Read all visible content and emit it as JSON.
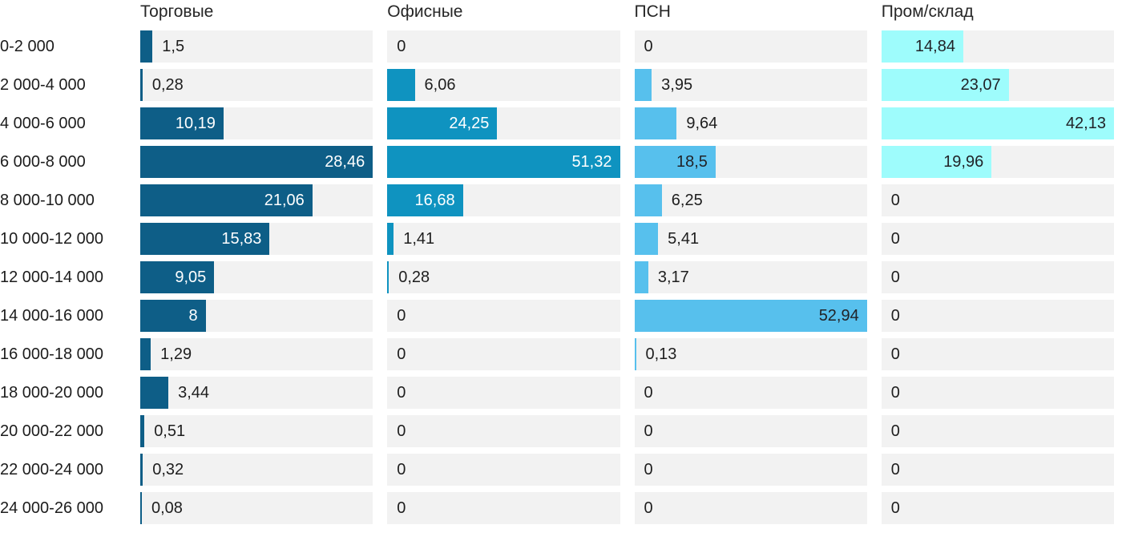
{
  "chart_data": {
    "type": "bar",
    "orientation": "horizontal",
    "title": "",
    "xlabel": "",
    "ylabel": "",
    "scaling": "each column scaled to its own max value",
    "track_color": "#f2f2f2",
    "label_text_color": "#1c1c1c",
    "outside_value_text_color": "#1e1e1e",
    "categories": [
      "0-2 000",
      "2 000-4 000",
      "4 000-6 000",
      "6 000-8 000",
      "8 000-10 000",
      "10 000-12 000",
      "12 000-14 000",
      "14 000-16 000",
      "16 000-18 000",
      "18 000-20 000",
      "20 000-22 000",
      "22 000-24 000",
      "24 000-26 000"
    ],
    "series": [
      {
        "name": "Торговые",
        "color": "#0e5e87",
        "inside_label_color": "#ffffff",
        "values": [
          1.5,
          0.28,
          10.19,
          28.46,
          21.06,
          15.83,
          9.05,
          8,
          1.29,
          3.44,
          0.51,
          0.32,
          0.08
        ],
        "labels": [
          "1,5",
          "0,28",
          "10,19",
          "28,46",
          "21,06",
          "15,83",
          "9,05",
          "8",
          "1,29",
          "3,44",
          "0,51",
          "0,32",
          "0,08"
        ]
      },
      {
        "name": "Офисные",
        "color": "#0f93c0",
        "inside_label_color": "#ffffff",
        "values": [
          0,
          6.06,
          24.25,
          51.32,
          16.68,
          1.41,
          0.28,
          0,
          0,
          0,
          0,
          0,
          0
        ],
        "labels": [
          "0",
          "6,06",
          "24,25",
          "51,32",
          "16,68",
          "1,41",
          "0,28",
          "0",
          "0",
          "0",
          "0",
          "0",
          "0"
        ]
      },
      {
        "name": "ПСН",
        "color": "#57c0ed",
        "inside_label_color": "#212328",
        "values": [
          0,
          3.95,
          9.64,
          18.5,
          6.25,
          5.41,
          3.17,
          52.94,
          0.13,
          0,
          0,
          0,
          0
        ],
        "labels": [
          "0",
          "3,95",
          "9,64",
          "18,5",
          "6,25",
          "5,41",
          "3,17",
          "52,94",
          "0,13",
          "0",
          "0",
          "0",
          "0"
        ]
      },
      {
        "name": "Пром/склад",
        "color": "#9efcfc",
        "inside_label_color": "#212328",
        "values": [
          14.84,
          23.07,
          42.13,
          19.96,
          0,
          0,
          0,
          0,
          0,
          0,
          0,
          0,
          0
        ],
        "labels": [
          "14,84",
          "23,07",
          "42,13",
          "19,96",
          "0",
          "0",
          "0",
          "0",
          "0",
          "0",
          "0",
          "0",
          "0"
        ]
      }
    ]
  }
}
